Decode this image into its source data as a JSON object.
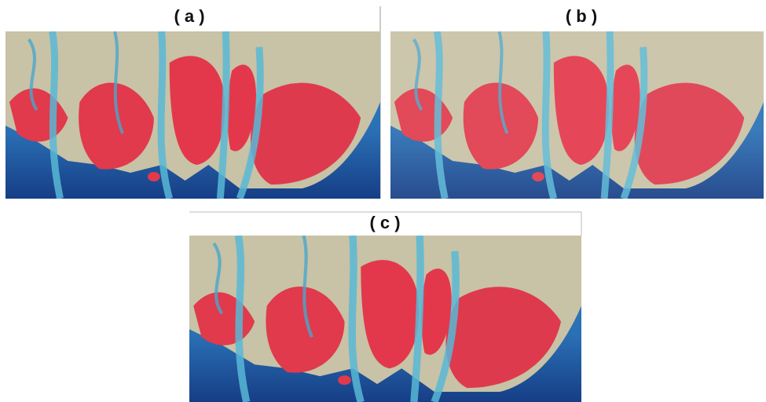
{
  "panels": [
    {
      "label": "( a )"
    },
    {
      "label": "( b )"
    },
    {
      "label": "( c )"
    }
  ]
}
